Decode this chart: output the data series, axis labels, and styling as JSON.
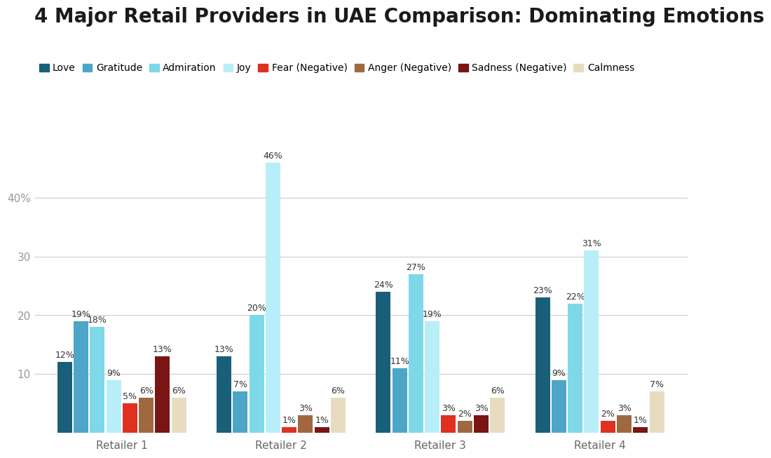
{
  "title": "4 Major Retail Providers in UAE Comparison: Dominating Emotions",
  "categories": [
    "Retailer 1",
    "Retailer 2",
    "Retailer 3",
    "Retailer 4"
  ],
  "emotions": [
    "Love",
    "Gratitude",
    "Admiration",
    "Joy",
    "Fear (Negative)",
    "Anger (Negative)",
    "Sadness (Negative)",
    "Calmness"
  ],
  "colors": [
    "#1a5f7a",
    "#4da6c8",
    "#7dd8e8",
    "#b8eef8",
    "#e03020",
    "#a06840",
    "#7a1515",
    "#e8dcc0"
  ],
  "values": {
    "Retailer 1": [
      12,
      19,
      18,
      9,
      5,
      6,
      13,
      6
    ],
    "Retailer 2": [
      13,
      7,
      20,
      46,
      1,
      3,
      1,
      6
    ],
    "Retailer 3": [
      24,
      11,
      27,
      19,
      3,
      2,
      3,
      6
    ],
    "Retailer 4": [
      23,
      9,
      22,
      31,
      2,
      3,
      1,
      7
    ]
  },
  "ylim": [
    0,
    50
  ],
  "yticks": [
    10,
    20,
    30,
    40
  ],
  "background_color": "#ffffff",
  "title_fontsize": 20,
  "label_fontsize": 9,
  "legend_fontsize": 10,
  "axis_label_color": "#999999",
  "bar_label_color": "#333333"
}
